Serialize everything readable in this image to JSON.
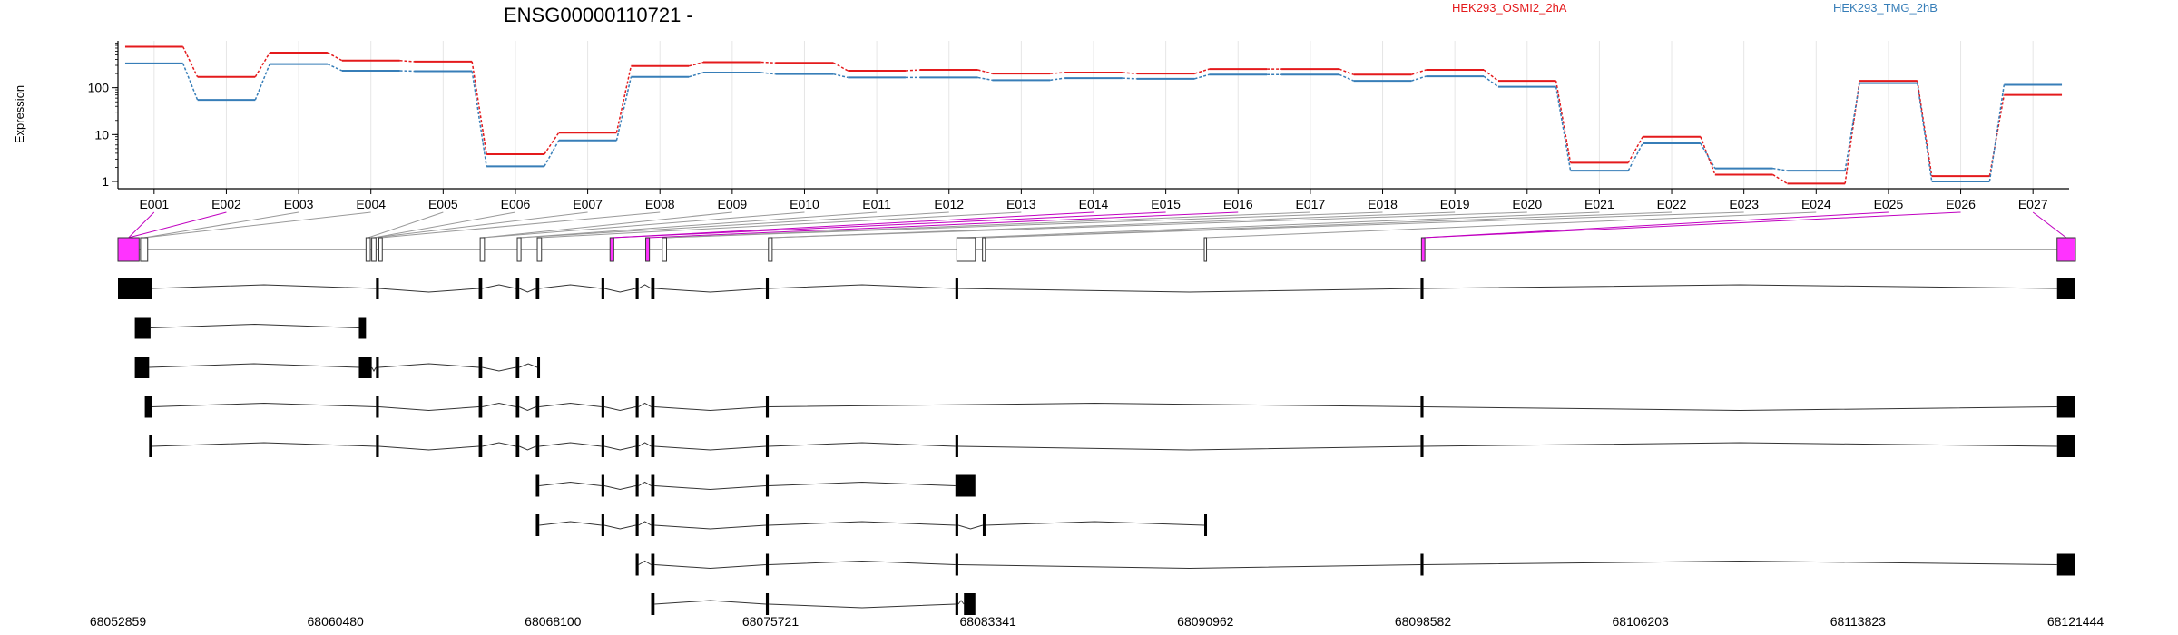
{
  "chart_data": {
    "type": "line",
    "title": "ENSG00000110721 -",
    "ylabel": "Expression",
    "y_scale": "log",
    "ylim": [
      0.7,
      1000
    ],
    "y_ticks": [
      "1",
      "10",
      "100"
    ],
    "y_tick_values": [
      1,
      10,
      100
    ],
    "grid": "vertical",
    "legend_placement": "top-right",
    "exon_labels": [
      "E001",
      "E002",
      "E003",
      "E004",
      "E005",
      "E006",
      "E007",
      "E008",
      "E009",
      "E010",
      "E011",
      "E012",
      "E013",
      "E014",
      "E015",
      "E016",
      "E017",
      "E018",
      "E019",
      "E020",
      "E021",
      "E022",
      "E023",
      "E024",
      "E025",
      "E026",
      "E027"
    ],
    "series": [
      {
        "name": "HEK293_OSMI2_2hA",
        "color": "#e41a1c",
        "values": [
          750,
          170,
          560,
          380,
          360,
          3.8,
          11,
          290,
          350,
          340,
          230,
          240,
          200,
          210,
          200,
          250,
          250,
          190,
          240,
          140,
          2.5,
          9,
          1.4,
          0.9,
          140,
          1.3,
          70
        ]
      },
      {
        "name": "HEK293_TMG_2hB",
        "color": "#377eb8",
        "values": [
          330,
          55,
          320,
          230,
          225,
          2.1,
          7.5,
          170,
          210,
          195,
          165,
          165,
          145,
          160,
          155,
          190,
          190,
          140,
          175,
          105,
          1.7,
          6.5,
          1.9,
          1.7,
          125,
          1.0,
          115
        ]
      }
    ],
    "genomic_ticks": [
      "68052859",
      "68060480",
      "68068100",
      "68075721",
      "68083341",
      "68090962",
      "68098582",
      "68106203",
      "68113823",
      "68121444"
    ],
    "gene_start": 68052859,
    "gene_end": 68121444,
    "gene_model": {
      "exons": [
        {
          "start": 68052859,
          "end": 68053600,
          "highlight": true
        },
        {
          "start": 68053650,
          "end": 68053900,
          "highlight": false
        },
        {
          "start": 68061550,
          "end": 68061700,
          "highlight": false
        },
        {
          "start": 68061750,
          "end": 68061900,
          "highlight": false
        },
        {
          "start": 68062000,
          "end": 68062120,
          "highlight": false
        },
        {
          "start": 68065550,
          "end": 68065700,
          "highlight": false
        },
        {
          "start": 68066850,
          "end": 68066980,
          "highlight": false
        },
        {
          "start": 68067550,
          "end": 68067700,
          "highlight": false
        },
        {
          "start": 68070100,
          "end": 68070230,
          "highlight": true
        },
        {
          "start": 68071350,
          "end": 68071480,
          "highlight": true
        },
        {
          "start": 68071930,
          "end": 68072080,
          "highlight": false
        },
        {
          "start": 68075650,
          "end": 68075780,
          "highlight": false
        },
        {
          "start": 68082250,
          "end": 68082900,
          "highlight": false
        },
        {
          "start": 68083150,
          "end": 68083250,
          "highlight": false
        },
        {
          "start": 68090920,
          "end": 68091000,
          "highlight": false
        },
        {
          "start": 68098530,
          "end": 68098650,
          "highlight": true
        },
        {
          "start": 68120800,
          "end": 68121444,
          "highlight": true
        }
      ],
      "transcripts": [
        {
          "exons": [
            [
              68052859,
              68054050
            ],
            [
              68061900,
              68062000
            ],
            [
              68065500,
              68065620
            ],
            [
              68066800,
              68066920
            ],
            [
              68067500,
              68067620
            ],
            [
              68069800,
              68069900
            ],
            [
              68071000,
              68071100
            ],
            [
              68071540,
              68071660
            ],
            [
              68075560,
              68075660
            ],
            [
              68082200,
              68082300
            ],
            [
              68098500,
              68098600
            ],
            [
              68120800,
              68121444
            ]
          ]
        },
        {
          "exons": [
            [
              68053450,
              68054000
            ],
            [
              68061300,
              68061550
            ]
          ]
        },
        {
          "exons": [
            [
              68053450,
              68053950
            ],
            [
              68061300,
              68061750
            ],
            [
              68061900,
              68062000
            ],
            [
              68065500,
              68065620
            ],
            [
              68066800,
              68066920
            ],
            [
              68067550,
              68067620
            ]
          ]
        },
        {
          "exons": [
            [
              68053800,
              68054050
            ],
            [
              68061900,
              68062000
            ],
            [
              68065500,
              68065620
            ],
            [
              68066800,
              68066920
            ],
            [
              68067500,
              68067620
            ],
            [
              68069800,
              68069900
            ],
            [
              68071000,
              68071100
            ],
            [
              68071540,
              68071660
            ],
            [
              68075560,
              68075660
            ],
            [
              68098500,
              68098600
            ],
            [
              68120800,
              68121444
            ]
          ]
        },
        {
          "exons": [
            [
              68053950,
              68054050
            ],
            [
              68061900,
              68062000
            ],
            [
              68065500,
              68065620
            ],
            [
              68066800,
              68066920
            ],
            [
              68067500,
              68067620
            ],
            [
              68069800,
              68069900
            ],
            [
              68071000,
              68071100
            ],
            [
              68071540,
              68071660
            ],
            [
              68075560,
              68075660
            ],
            [
              68082200,
              68082300
            ],
            [
              68098500,
              68098600
            ],
            [
              68120800,
              68121444
            ]
          ]
        },
        {
          "exons": [
            [
              68067500,
              68067620
            ],
            [
              68069800,
              68069900
            ],
            [
              68071000,
              68071100
            ],
            [
              68071540,
              68071660
            ],
            [
              68075560,
              68075660
            ],
            [
              68082200,
              68082900
            ]
          ]
        },
        {
          "exons": [
            [
              68067500,
              68067620
            ],
            [
              68069800,
              68069900
            ],
            [
              68071000,
              68071100
            ],
            [
              68071540,
              68071660
            ],
            [
              68075560,
              68075660
            ],
            [
              68082200,
              68082300
            ],
            [
              68083160,
              68083240
            ],
            [
              68090920,
              68091000
            ]
          ]
        },
        {
          "exons": [
            [
              68071000,
              68071100
            ],
            [
              68071540,
              68071660
            ],
            [
              68075560,
              68075660
            ],
            [
              68082200,
              68082300
            ],
            [
              68098500,
              68098600
            ],
            [
              68120800,
              68121444
            ]
          ]
        },
        {
          "exons": [
            [
              68071540,
              68071660
            ],
            [
              68075560,
              68075660
            ],
            [
              68082200,
              68082300
            ],
            [
              68082500,
              68082900
            ]
          ]
        }
      ]
    }
  }
}
